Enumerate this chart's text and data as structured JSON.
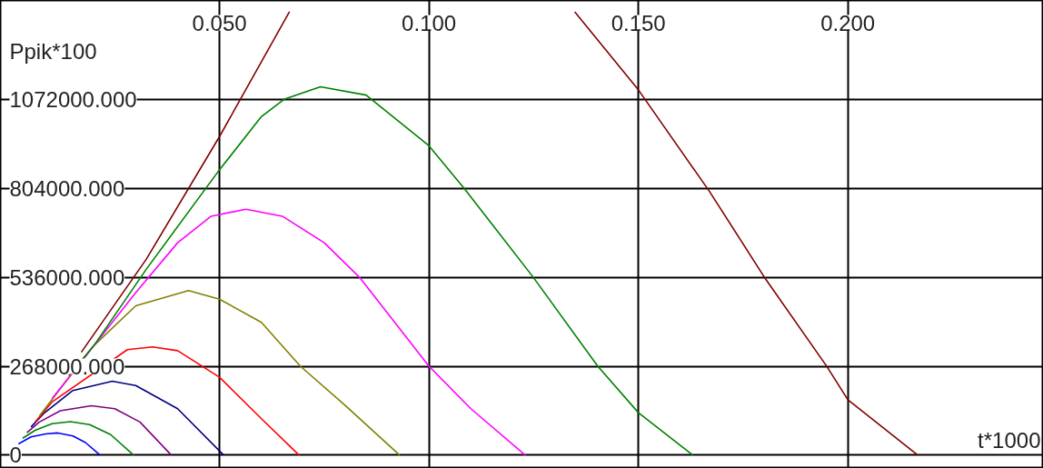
{
  "chart_data": {
    "type": "line",
    "xlabel": "t*1000",
    "ylabel": "Ppik*100",
    "xlim": [
      -0.0023,
      0.2467
    ],
    "ylim": [
      -40000,
      1370000
    ],
    "xticks": [
      {
        "value": 0.05,
        "label": "0.050"
      },
      {
        "value": 0.1,
        "label": "0.100"
      },
      {
        "value": 0.15,
        "label": "0.150"
      },
      {
        "value": 0.2,
        "label": "0.200"
      }
    ],
    "yticks": [
      0,
      {
        "value": 268000,
        "label": "268000.000"
      },
      {
        "value": 536000,
        "label": "536000.000"
      },
      {
        "value": 804000,
        "label": "804000.000"
      },
      {
        "value": 1072000,
        "label": "1072000.000"
      }
    ],
    "grid": true,
    "series": [
      {
        "color": "#0000ff",
        "x": [
          0.002,
          0.005,
          0.0085,
          0.0114,
          0.015,
          0.018,
          0.0215
        ],
        "values": [
          34000,
          55000,
          64000,
          67000,
          58000,
          38000,
          0
        ]
      },
      {
        "color": "#008000",
        "x": [
          0.003,
          0.006,
          0.01,
          0.0144,
          0.019,
          0.024,
          0.0295
        ],
        "values": [
          51000,
          75000,
          95000,
          101000,
          92000,
          62000,
          0
        ]
      },
      {
        "color": "#800080",
        "x": [
          0.004,
          0.007,
          0.012,
          0.0194,
          0.025,
          0.031,
          0.0385
        ],
        "values": [
          68000,
          100000,
          134000,
          149000,
          140000,
          100000,
          0
        ]
      },
      {
        "color": "#000080",
        "x": [
          0.005,
          0.008,
          0.015,
          0.0244,
          0.03,
          0.04,
          0.051
        ],
        "values": [
          85000,
          125000,
          195000,
          223000,
          210000,
          140000,
          0
        ]
      },
      {
        "color": "#ff0000",
        "x": [
          0.006,
          0.01,
          0.028,
          0.034,
          0.04,
          0.05,
          0.06,
          0.069
        ],
        "values": [
          100000,
          160000,
          318000,
          326000,
          315000,
          235000,
          110000,
          0
        ]
      },
      {
        "color": "#808000",
        "x": [
          0.007,
          0.012,
          0.02,
          0.03,
          0.0426,
          0.05,
          0.06,
          0.0693,
          0.08,
          0.093
        ],
        "values": [
          118000,
          200000,
          330000,
          450000,
          496000,
          470000,
          400000,
          268000,
          150000,
          0
        ]
      },
      {
        "color": "#ff00ff",
        "x": [
          0.01,
          0.03,
          0.04,
          0.048,
          0.0563,
          0.065,
          0.075,
          0.0834,
          0.1,
          0.11,
          0.123
        ],
        "values": [
          170000,
          490000,
          640000,
          720000,
          741000,
          720000,
          640000,
          536000,
          268000,
          140000,
          0
        ]
      },
      {
        "color": "#008000",
        "x": [
          0.014,
          0.02,
          0.0325,
          0.0497,
          0.06,
          0.0654,
          0.0741,
          0.085,
          0.1,
          0.1084,
          0.1249,
          0.1403,
          0.15,
          0.163
        ],
        "values": [
          240000,
          330000,
          560000,
          855000,
          1020000,
          1072000,
          1110000,
          1085000,
          932000,
          804000,
          536000,
          268000,
          128000,
          0
        ]
      },
      {
        "color": "#800000",
        "x": [
          0.017,
          0.0325,
          0.05,
          0.0667,
          0.1,
          0.1348,
          0.1498,
          0.167,
          0.1804,
          0.195,
          0.2,
          0.2167
        ],
        "values": [
          310000,
          590000,
          960000,
          1336000,
          null,
          1336000,
          1104000,
          794000,
          530000,
          267000,
          167000,
          0
        ]
      }
    ]
  }
}
